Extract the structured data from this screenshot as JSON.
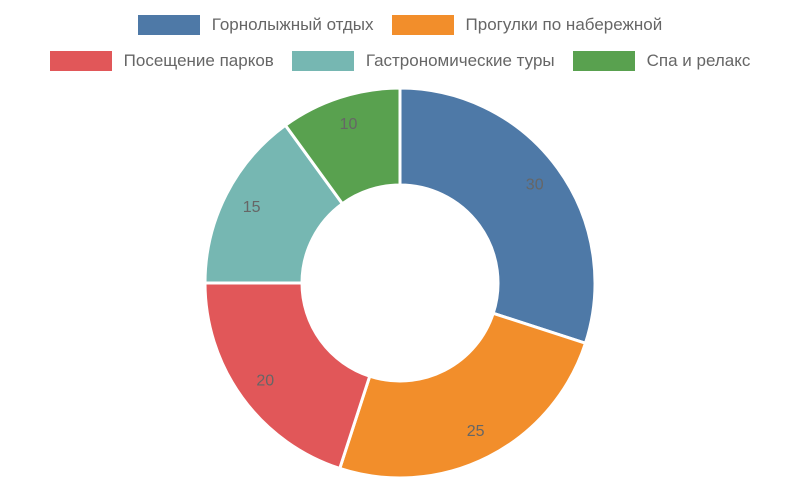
{
  "chart_data": {
    "type": "doughnut",
    "series": [
      {
        "name": "Горнолыжный отдых",
        "value": 30,
        "color": "#4e79a7"
      },
      {
        "name": "Прогулки по набережной",
        "value": 25,
        "color": "#f28e2b"
      },
      {
        "name": "Посещение парков",
        "value": 20,
        "color": "#e15759"
      },
      {
        "name": "Гастрономические туры",
        "value": 15,
        "color": "#76b7b2"
      },
      {
        "name": "Спа и релакс",
        "value": 10,
        "color": "#59a14f"
      }
    ],
    "legend_position": "top",
    "show_values": true
  }
}
